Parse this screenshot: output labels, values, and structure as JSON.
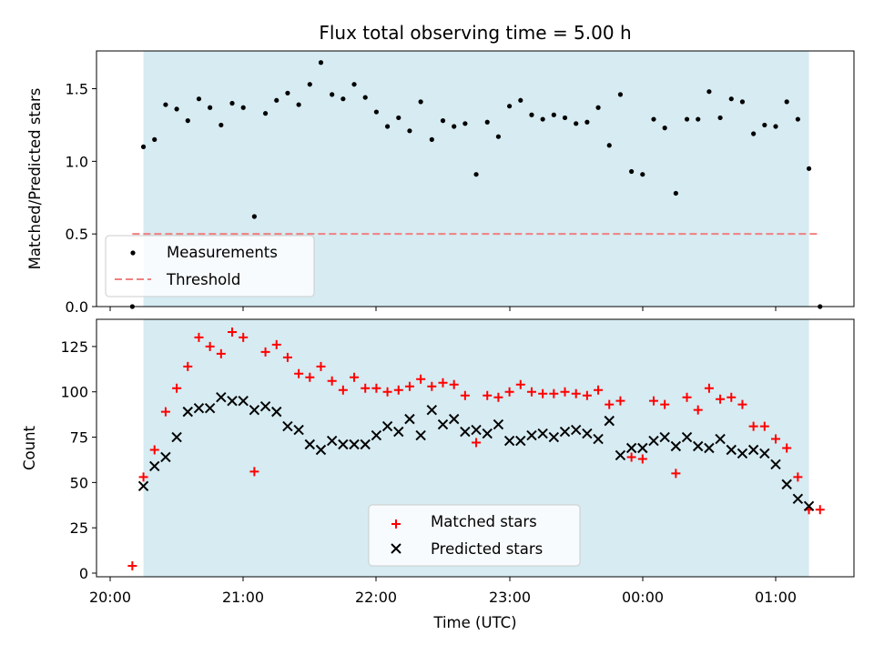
{
  "chart_data": [
    {
      "type": "scatter",
      "title": "Flux total observing time = 5.00 h",
      "xlabel": "",
      "ylabel": "Matched/Predicted stars",
      "ylim": [
        0,
        1.76
      ],
      "yticks": [
        "0.0",
        "0.5",
        "1.0",
        "1.5"
      ],
      "shaded_span": [
        "20:15",
        "01:15"
      ],
      "threshold": {
        "name": "Threshold",
        "value": 0.5,
        "x_start": "20:10",
        "x_end": "01:20",
        "color": "#f08080"
      },
      "series": [
        {
          "name": "Measurements",
          "color": "#000000",
          "x": [
            "20:10",
            "20:15",
            "20:20",
            "20:25",
            "20:30",
            "20:35",
            "20:40",
            "20:45",
            "20:50",
            "20:55",
            "21:00",
            "21:05",
            "21:10",
            "21:15",
            "21:20",
            "21:25",
            "21:30",
            "21:35",
            "21:40",
            "21:45",
            "21:50",
            "21:55",
            "22:00",
            "22:05",
            "22:10",
            "22:15",
            "22:20",
            "22:25",
            "22:30",
            "22:35",
            "22:40",
            "22:45",
            "22:50",
            "22:55",
            "23:00",
            "23:05",
            "23:10",
            "23:15",
            "23:20",
            "23:25",
            "23:30",
            "23:35",
            "23:40",
            "23:45",
            "23:50",
            "23:55",
            "00:00",
            "00:05",
            "00:10",
            "00:15",
            "00:20",
            "00:25",
            "00:30",
            "00:35",
            "00:40",
            "00:45",
            "00:50",
            "00:55",
            "01:00",
            "01:05",
            "01:10",
            "01:15",
            "01:20"
          ],
          "y": [
            0.0,
            1.1,
            1.15,
            1.39,
            1.36,
            1.28,
            1.43,
            1.37,
            1.25,
            1.4,
            1.37,
            0.62,
            1.33,
            1.42,
            1.47,
            1.39,
            1.53,
            1.68,
            1.46,
            1.43,
            1.53,
            1.44,
            1.34,
            1.24,
            1.3,
            1.21,
            1.41,
            1.15,
            1.28,
            1.24,
            1.26,
            0.91,
            1.27,
            1.17,
            1.38,
            1.42,
            1.32,
            1.29,
            1.32,
            1.3,
            1.26,
            1.27,
            1.37,
            1.11,
            1.46,
            0.93,
            0.91,
            1.29,
            1.23,
            0.78,
            1.29,
            1.29,
            1.48,
            1.3,
            1.43,
            1.41,
            1.19,
            1.25,
            1.24,
            1.41,
            1.29,
            0.95,
            0.0
          ]
        }
      ],
      "legend": [
        "Measurements",
        "Threshold"
      ],
      "legend_position": "lower-left",
      "xticks": [
        "20:00",
        "21:00",
        "22:00",
        "23:00",
        "00:00",
        "01:00"
      ]
    },
    {
      "type": "scatter",
      "title": "",
      "xlabel": "Time (UTC)",
      "ylabel": "Count",
      "ylim": [
        -2,
        140
      ],
      "yticks": [
        "0",
        "25",
        "50",
        "75",
        "100",
        "125"
      ],
      "shaded_span": [
        "20:15",
        "01:15"
      ],
      "xticks": [
        "20:00",
        "21:00",
        "22:00",
        "23:00",
        "00:00",
        "01:00"
      ],
      "series": [
        {
          "name": "Matched stars",
          "color": "#ff0000",
          "marker": "plus",
          "x": [
            "20:10",
            "20:15",
            "20:20",
            "20:25",
            "20:30",
            "20:35",
            "20:40",
            "20:45",
            "20:50",
            "20:55",
            "21:00",
            "21:05",
            "21:10",
            "21:15",
            "21:20",
            "21:25",
            "21:30",
            "21:35",
            "21:40",
            "21:45",
            "21:50",
            "21:55",
            "22:00",
            "22:05",
            "22:10",
            "22:15",
            "22:20",
            "22:25",
            "22:30",
            "22:35",
            "22:40",
            "22:45",
            "22:50",
            "22:55",
            "23:00",
            "23:05",
            "23:10",
            "23:15",
            "23:20",
            "23:25",
            "23:30",
            "23:35",
            "23:40",
            "23:45",
            "23:50",
            "23:55",
            "00:00",
            "00:05",
            "00:10",
            "00:15",
            "00:20",
            "00:25",
            "00:30",
            "00:35",
            "00:40",
            "00:45",
            "00:50",
            "00:55",
            "01:00",
            "01:05",
            "01:10",
            "01:15",
            "01:20"
          ],
          "y": [
            4,
            53,
            68,
            89,
            102,
            114,
            130,
            125,
            121,
            133,
            130,
            56,
            122,
            126,
            119,
            110,
            108,
            114,
            106,
            101,
            108,
            102,
            102,
            100,
            101,
            103,
            107,
            103,
            105,
            104,
            98,
            72,
            98,
            97,
            100,
            104,
            100,
            99,
            99,
            100,
            99,
            98,
            101,
            93,
            95,
            64,
            63,
            95,
            93,
            55,
            97,
            90,
            102,
            96,
            97,
            93,
            81,
            81,
            74,
            69,
            53,
            35,
            35
          ]
        },
        {
          "name": "Predicted stars",
          "color": "#000000",
          "marker": "x",
          "x": [
            "20:15",
            "20:20",
            "20:25",
            "20:30",
            "20:35",
            "20:40",
            "20:45",
            "20:50",
            "20:55",
            "21:00",
            "21:05",
            "21:10",
            "21:15",
            "21:20",
            "21:25",
            "21:30",
            "21:35",
            "21:40",
            "21:45",
            "21:50",
            "21:55",
            "22:00",
            "22:05",
            "22:10",
            "22:15",
            "22:20",
            "22:25",
            "22:30",
            "22:35",
            "22:40",
            "22:45",
            "22:50",
            "22:55",
            "23:00",
            "23:05",
            "23:10",
            "23:15",
            "23:20",
            "23:25",
            "23:30",
            "23:35",
            "23:40",
            "23:45",
            "23:50",
            "23:55",
            "00:00",
            "00:05",
            "00:10",
            "00:15",
            "00:20",
            "00:25",
            "00:30",
            "00:35",
            "00:40",
            "00:45",
            "00:50",
            "00:55",
            "01:00",
            "01:05",
            "01:10",
            "01:15"
          ],
          "y": [
            48,
            59,
            64,
            75,
            89,
            91,
            91,
            97,
            95,
            95,
            90,
            92,
            89,
            81,
            79,
            71,
            68,
            73,
            71,
            71,
            71,
            76,
            81,
            78,
            85,
            76,
            90,
            82,
            85,
            78,
            79,
            77,
            82,
            73,
            73,
            76,
            77,
            75,
            78,
            79,
            77,
            74,
            84,
            65,
            69,
            69,
            73,
            75,
            70,
            75,
            70,
            69,
            74,
            68,
            66,
            68,
            66,
            60,
            49,
            41,
            37
          ]
        }
      ],
      "legend": [
        "Matched stars",
        "Predicted stars"
      ],
      "legend_position": "lower-center"
    }
  ]
}
